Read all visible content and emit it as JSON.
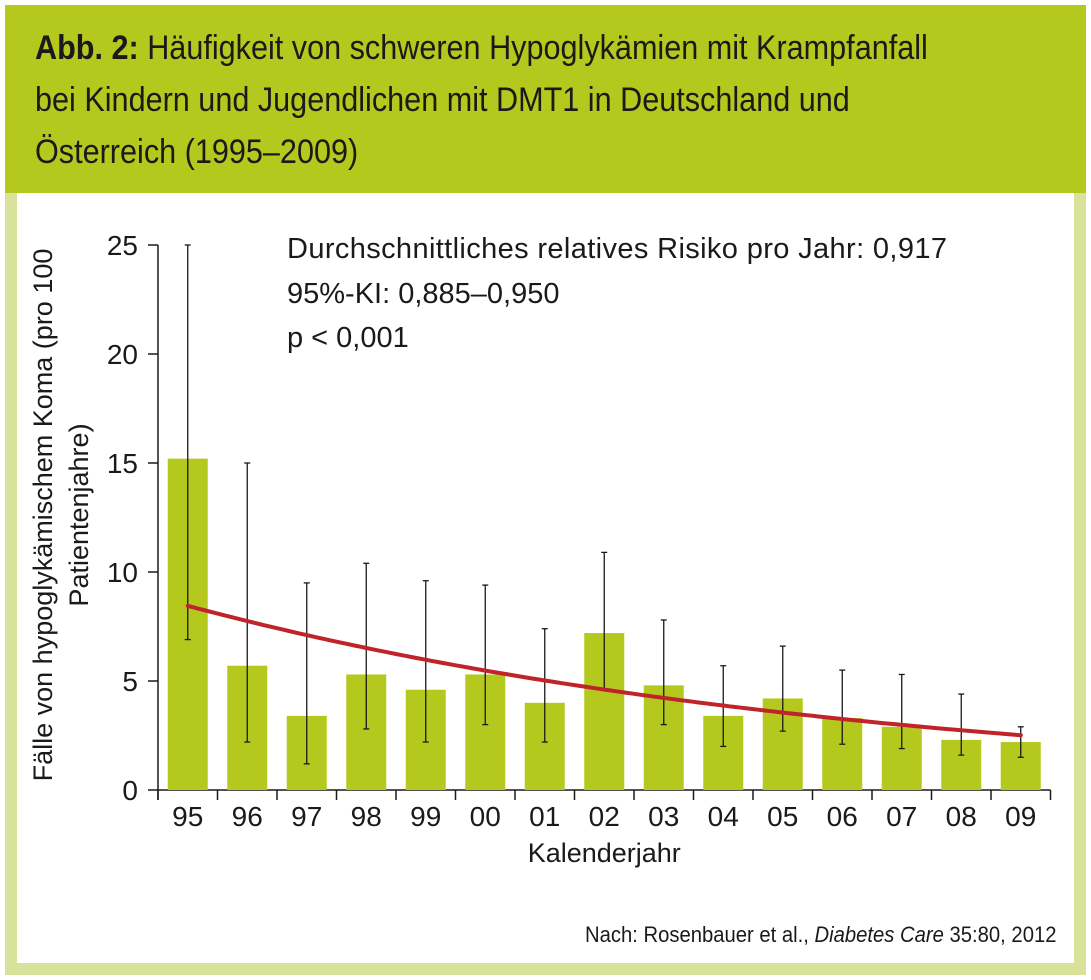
{
  "header": {
    "title_prefix": "Abb. 2:",
    "title_text": " Häufigkeit von schweren Hypoglykämien mit Krampfanfall bei Kindern und Jugendlichen mit DMT1 in Deutschland und Österreich (1995–2009)"
  },
  "colors": {
    "header_bg": "#b5c81e",
    "frame_bg": "#d8e29a",
    "bar": "#b5c81e",
    "trend_line": "#c1232b"
  },
  "chart_data": {
    "type": "bar",
    "title": "",
    "xlabel": "Kalenderjahr",
    "ylabel_line1": "Fälle von hypoglykämischem Koma (pro 100",
    "ylabel_line2": "Patientenjahre)",
    "ylim": [
      0,
      25
    ],
    "yticks": [
      "0",
      "5",
      "10",
      "15",
      "20",
      "25"
    ],
    "categories": [
      "95",
      "96",
      "97",
      "98",
      "99",
      "00",
      "01",
      "02",
      "03",
      "04",
      "05",
      "06",
      "07",
      "08",
      "09"
    ],
    "values": [
      15.2,
      5.7,
      3.4,
      5.3,
      4.6,
      5.3,
      4.0,
      7.2,
      4.8,
      3.4,
      4.2,
      3.3,
      2.9,
      2.3,
      2.2
    ],
    "error_low": [
      6.9,
      2.2,
      1.2,
      2.8,
      2.2,
      3.0,
      2.2,
      4.6,
      3.0,
      2.0,
      2.7,
      2.1,
      1.9,
      1.6,
      1.5
    ],
    "error_high": [
      25.0,
      15.0,
      9.5,
      10.4,
      9.6,
      9.4,
      7.4,
      10.9,
      7.8,
      5.7,
      6.6,
      5.5,
      5.3,
      4.4,
      2.9
    ],
    "trend": {
      "start_value": 8.45,
      "annual_ratio": 0.917
    },
    "annotation": [
      "Durchschnittliches relatives Risiko pro Jahr: 0,917",
      "95%-KI: 0,885–0,950",
      "p < 0,001"
    ],
    "grid": false,
    "legend": "none"
  },
  "source": {
    "prefix": "Nach: Rosenbauer et al., ",
    "journal": "Diabetes Care",
    "suffix": " 35:80, 2012"
  }
}
